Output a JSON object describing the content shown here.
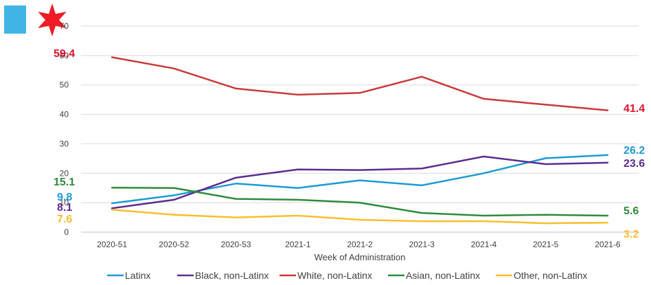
{
  "logo": {
    "bar_color": "#41B6E6",
    "star_color": "#EF1C26",
    "icon": "chicago-star-icon"
  },
  "chart_data": {
    "type": "line",
    "xlabel": "Week of Administration",
    "ylabel": "",
    "ylim": [
      0,
      70
    ],
    "yticks": [
      0,
      10,
      20,
      30,
      40,
      50,
      60,
      70
    ],
    "grid": true,
    "legend_position": "bottom",
    "categories": [
      "2020-51",
      "2020-52",
      "2020-53",
      "2021-1",
      "2021-2",
      "2021-3",
      "2021-4",
      "2021-5",
      "2021-6"
    ],
    "series": [
      {
        "name": "Latinx",
        "color": "#1B9BD1",
        "values": [
          9.8,
          12.5,
          16.5,
          15.0,
          17.6,
          15.9,
          20.0,
          25.1,
          26.2
        ],
        "start_label": "9.8",
        "end_label": "26.2"
      },
      {
        "name": "Black, non-Latinx",
        "color": "#5B2C8F",
        "values": [
          8.1,
          11.0,
          18.5,
          21.3,
          21.1,
          21.6,
          25.7,
          23.1,
          23.6
        ],
        "start_label": "8.1",
        "end_label": "23.6"
      },
      {
        "name": "White, non-Latinx",
        "color": "#C9393A",
        "values": [
          59.4,
          55.6,
          48.8,
          46.7,
          47.3,
          52.8,
          45.3,
          43.3,
          41.4
        ],
        "start_label": "59.4",
        "end_label": "41.4"
      },
      {
        "name": "Asian, non-Latinx",
        "color": "#2E8B3A",
        "values": [
          15.1,
          15.0,
          11.3,
          11.0,
          10.0,
          6.5,
          5.6,
          5.9,
          5.6
        ],
        "start_label": "15.1",
        "end_label": "5.6"
      },
      {
        "name": "Other, non-Latinx",
        "color": "#F9BE2C",
        "values": [
          7.6,
          5.9,
          5.0,
          5.6,
          4.2,
          3.7,
          3.7,
          3.0,
          3.2
        ],
        "start_label": "7.6",
        "end_label": "3.2"
      }
    ]
  }
}
